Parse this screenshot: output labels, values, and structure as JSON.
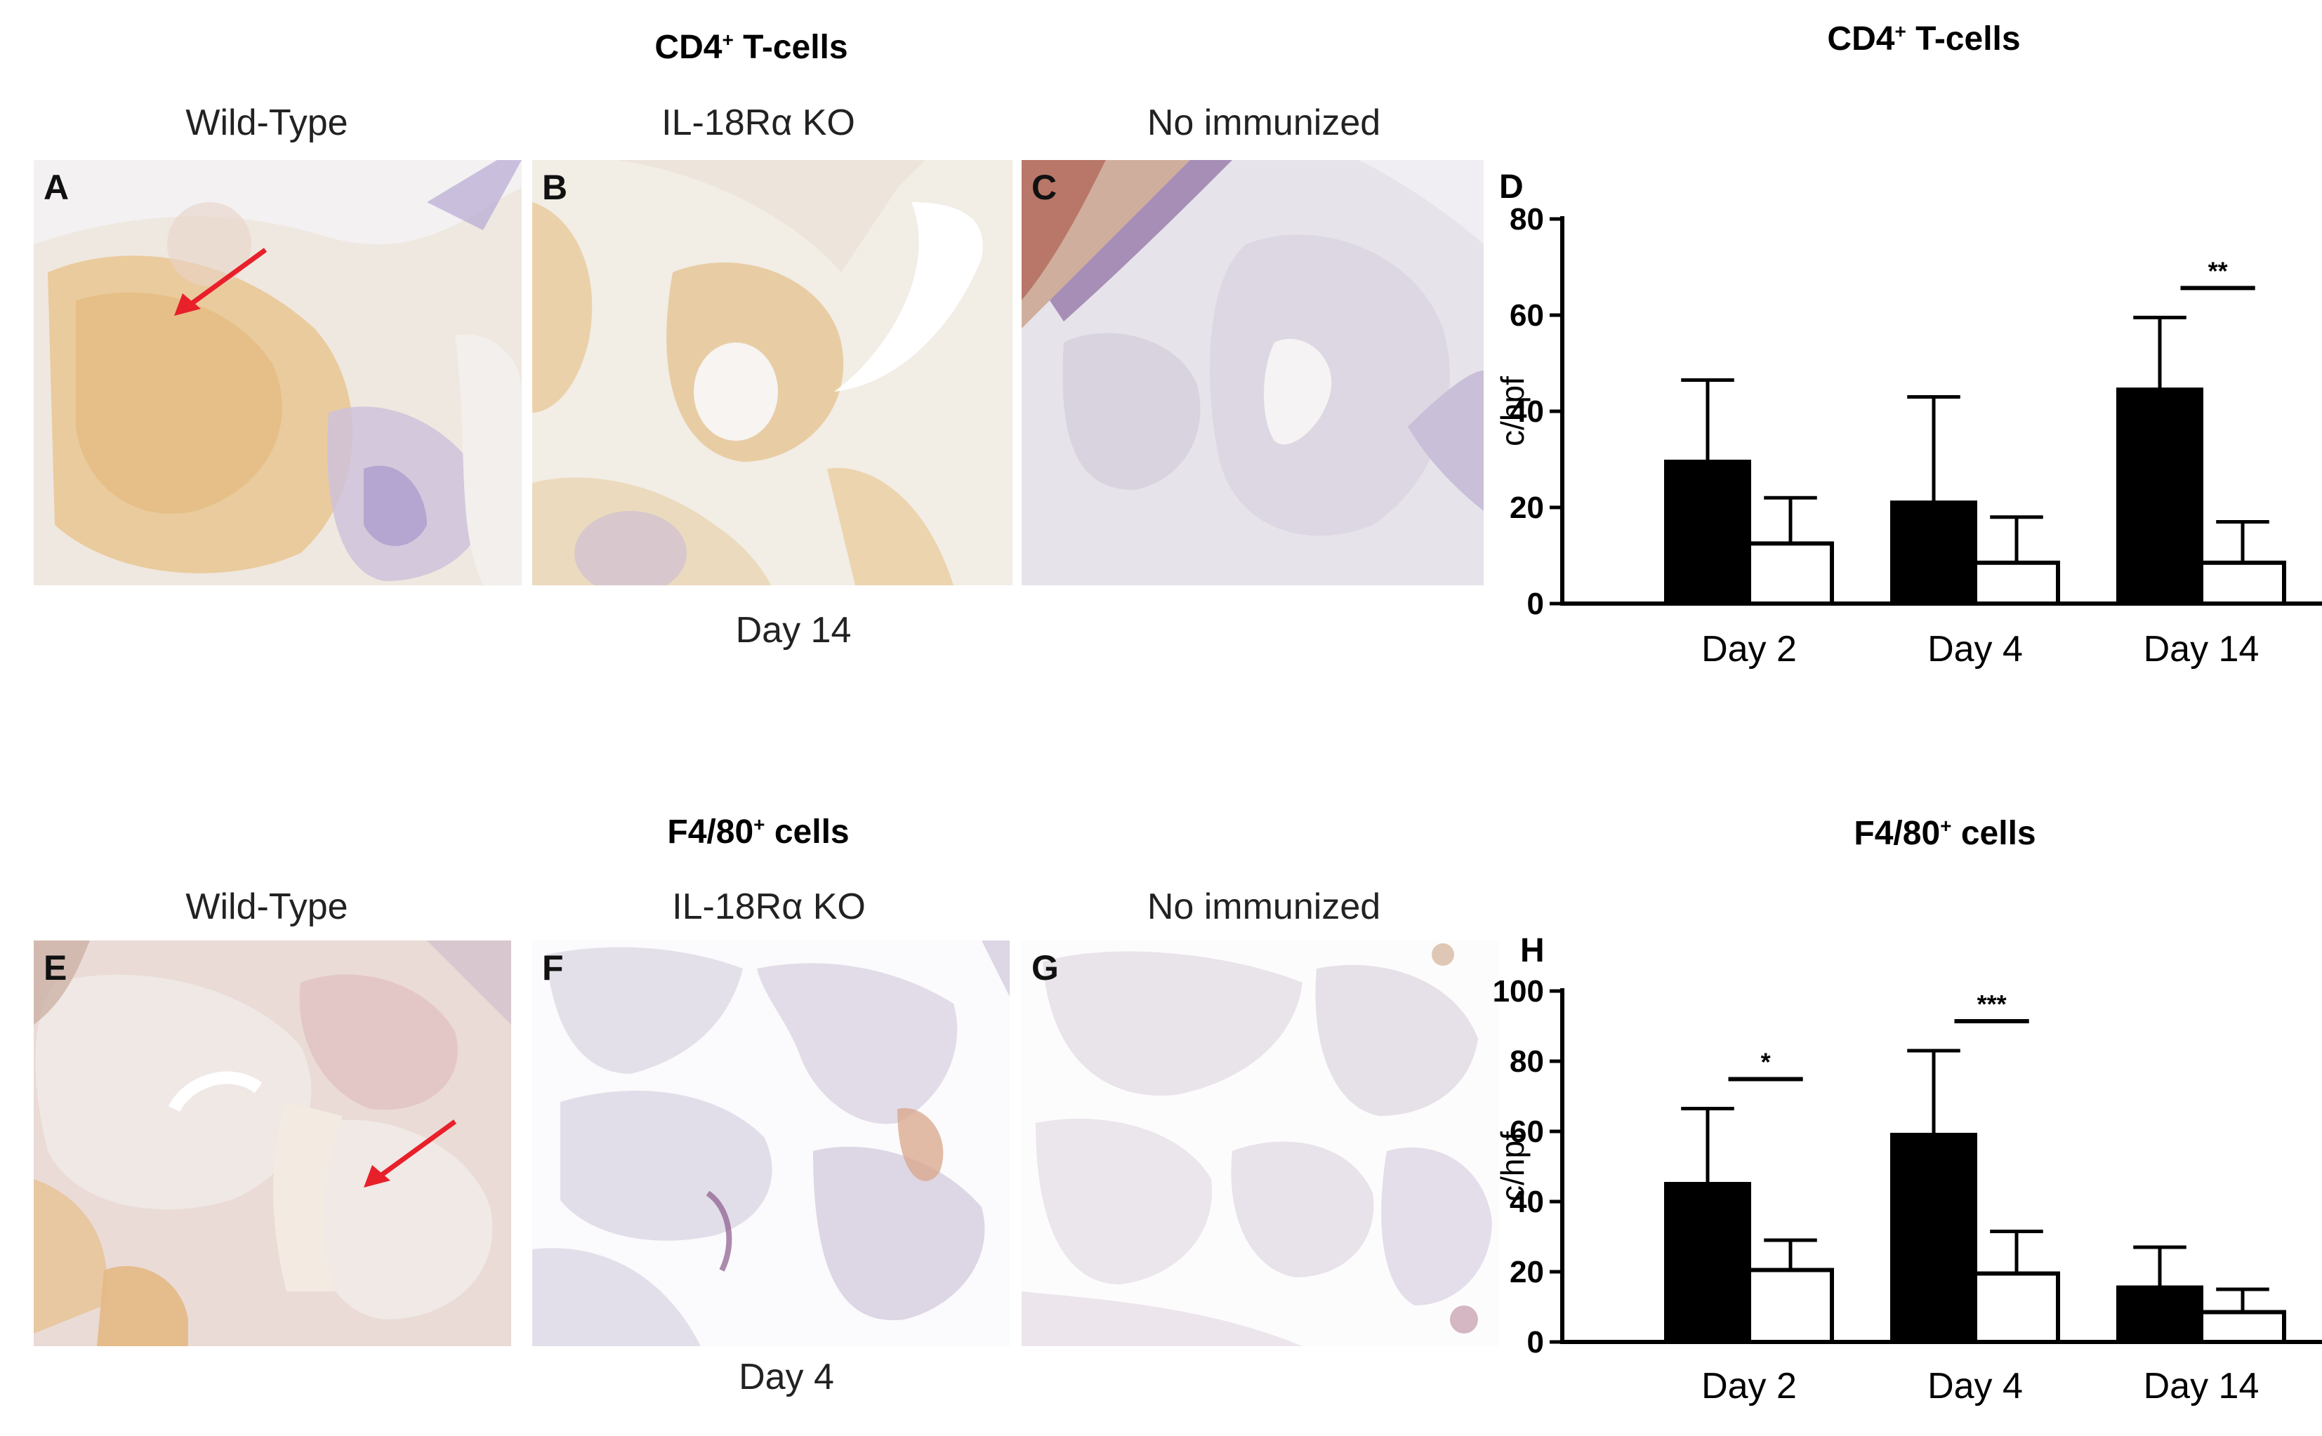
{
  "top": {
    "title_prefix": "CD4",
    "title_sup": "+",
    "title_suffix": " T-cells",
    "groups": [
      "Wild-Type",
      "IL-18Rα KO",
      "No immunized"
    ],
    "panel_letters": [
      "A",
      "B",
      "C"
    ],
    "day_label": "Day 14"
  },
  "bottom": {
    "title_prefix": "F4/80",
    "title_sup": "+",
    "title_suffix": " cells",
    "groups": [
      "Wild-Type",
      "IL-18Rα KO",
      "No immunized"
    ],
    "panel_letters": [
      "E",
      "F",
      "G"
    ],
    "day_label": "Day 4"
  },
  "colors": {
    "wild_type_bar": "#000000",
    "ko_bar": "#ffffff",
    "arrow": "#e8202a",
    "tissue_tan": "#e8c99a",
    "tissue_background": "#eeeaf0",
    "hematoxylin": "#8a78b8"
  },
  "chart_data": [
    {
      "type": "bar",
      "panel": "D",
      "title_prefix": "CD4",
      "title_sup": "+",
      "title_suffix": " T-cells",
      "categories": [
        "Day 2",
        "Day 4",
        "Day 14"
      ],
      "ylabel": "c/hpf",
      "xlabel": "",
      "ylim": [
        0,
        80
      ],
      "yticks": [
        "0",
        "20",
        "40",
        "60",
        "80"
      ],
      "series": [
        {
          "color": "#000000",
          "values": [
            29.5,
            21,
            44.5
          ],
          "errors": [
            17,
            22,
            15
          ]
        },
        {
          "color": "#ffffff",
          "values": [
            12.5,
            8.5,
            8.5
          ],
          "errors": [
            9.5,
            9.5,
            8.5
          ]
        }
      ],
      "significance": [
        {
          "category_index": 2,
          "label": "**"
        }
      ],
      "grid": false
    },
    {
      "type": "bar",
      "panel": "H",
      "title_prefix": "F4/80",
      "title_sup": "+",
      "title_suffix": " cells",
      "categories": [
        "Day 2",
        "Day 4",
        "Day 14"
      ],
      "ylabel": "c/hpf",
      "xlabel": "",
      "ylim": [
        0,
        100
      ],
      "yticks": [
        "0",
        "20",
        "40",
        "60",
        "80",
        "100"
      ],
      "series": [
        {
          "color": "#000000",
          "values": [
            45,
            59,
            15.5
          ],
          "errors": [
            21.5,
            24,
            11.5
          ]
        },
        {
          "color": "#ffffff",
          "values": [
            20.5,
            19.5,
            8.5
          ],
          "errors": [
            8.5,
            12,
            6.5
          ]
        }
      ],
      "significance": [
        {
          "category_index": 0,
          "label": "*"
        },
        {
          "category_index": 1,
          "label": "***"
        }
      ],
      "grid": false
    }
  ]
}
